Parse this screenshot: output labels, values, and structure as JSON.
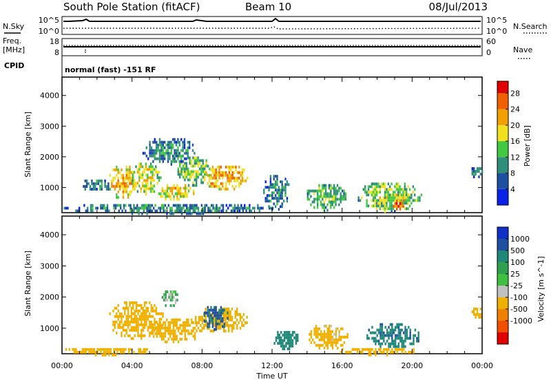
{
  "header": {
    "station": "South Pole Station (fitACF)",
    "beam": "Beam 10",
    "date": "08/Jul/2013"
  },
  "summary_panels": {
    "nsky_label": "N.Sky",
    "nsearch_label": "N.Search",
    "noise_ticks": [
      "10^5",
      "10^0"
    ],
    "noise_ticks_right": [
      "10^5",
      "10^0"
    ],
    "freq_label_line1": "Freq.",
    "freq_label_line2": "[MHz]",
    "freq_ticks": [
      "18",
      "8"
    ],
    "nave_label": "Nave",
    "nave_ticks": [
      "60",
      "0"
    ],
    "cpid_label": "CPID",
    "cpid_text": "normal (fast) -151 RF"
  },
  "colors": {
    "power_scale": [
      "#0a22e8",
      "#1f4fa0",
      "#2f8f7a",
      "#43c843",
      "#f0e020",
      "#f0a000",
      "#f06000",
      "#e00000"
    ],
    "velocity_scale": [
      "#e00000",
      "#f05000",
      "#f08000",
      "#f0b000",
      "#c0c0c0",
      "#40c040",
      "#30a050",
      "#208878",
      "#2050a0",
      "#1030c8"
    ],
    "axis": "#000000"
  },
  "chart_data": [
    {
      "type": "heatmap",
      "panel": "power",
      "ylabel": "Slant Range [km]",
      "x_ticks": [
        "00:00",
        "04:00",
        "08:00",
        "12:00",
        "16:00",
        "20:00",
        "00:00"
      ],
      "xlim_hours": [
        0,
        24
      ],
      "y_ticks": [
        1000,
        2000,
        3000,
        4000
      ],
      "ylim": [
        180,
        4600
      ],
      "colorbar": {
        "label": "Power [dB]",
        "ticks": [
          4,
          8,
          12,
          16,
          20,
          24,
          28
        ],
        "range": [
          0,
          31
        ]
      },
      "regions": [
        {
          "t0": 1.0,
          "t1": 2.9,
          "r0": 900,
          "r1": 1350,
          "level": 6
        },
        {
          "t0": 2.6,
          "t1": 4.2,
          "r0": 650,
          "r1": 1800,
          "level": 18
        },
        {
          "t0": 3.9,
          "t1": 5.6,
          "r0": 800,
          "r1": 1900,
          "level": 14
        },
        {
          "t0": 5.4,
          "t1": 7.5,
          "r0": 600,
          "r1": 1200,
          "level": 16
        },
        {
          "t0": 6.5,
          "t1": 8.5,
          "r0": 1100,
          "r1": 2100,
          "level": 12
        },
        {
          "t0": 8.0,
          "t1": 10.6,
          "r0": 950,
          "r1": 1800,
          "level": 19
        },
        {
          "t0": 4.5,
          "t1": 7.6,
          "r0": 1800,
          "r1": 2700,
          "level": 6
        },
        {
          "t0": 0.0,
          "t1": 12.0,
          "r0": 180,
          "r1": 550,
          "level": 6
        },
        {
          "t0": 11.4,
          "t1": 13.0,
          "r0": 300,
          "r1": 1500,
          "level": 6
        },
        {
          "t0": 13.8,
          "t1": 16.2,
          "r0": 300,
          "r1": 1200,
          "level": 10
        },
        {
          "t0": 16.8,
          "t1": 20.5,
          "r0": 250,
          "r1": 1250,
          "level": 12
        },
        {
          "t0": 18.8,
          "t1": 19.6,
          "r0": 300,
          "r1": 700,
          "level": 22
        },
        {
          "t0": 23.3,
          "t1": 24.0,
          "r0": 1350,
          "r1": 1750,
          "level": 6
        }
      ]
    },
    {
      "type": "heatmap",
      "panel": "velocity",
      "ylabel": "Slant Range [km]",
      "xlabel": "Time UT",
      "x_ticks": [
        "00:00",
        "04:00",
        "08:00",
        "12:00",
        "16:00",
        "20:00",
        "00:00"
      ],
      "xlim_hours": [
        0,
        24
      ],
      "y_ticks": [
        1000,
        2000,
        3000,
        4000
      ],
      "ylim": [
        180,
        4600
      ],
      "colorbar": {
        "label": "Velocity [m s^-1]",
        "ticks": [
          1000,
          500,
          100,
          25,
          -25,
          -100,
          -500,
          -1000
        ]
      },
      "regions": [
        {
          "t0": 2.6,
          "t1": 5.8,
          "r0": 700,
          "r1": 1950,
          "level": -300
        },
        {
          "t0": 5.0,
          "t1": 8.0,
          "r0": 550,
          "r1": 1400,
          "level": -300
        },
        {
          "t0": 5.6,
          "t1": 6.6,
          "r0": 1700,
          "r1": 2300,
          "level": 10
        },
        {
          "t0": 7.5,
          "t1": 10.6,
          "r0": 900,
          "r1": 1750,
          "level": -200
        },
        {
          "t0": 8.0,
          "t1": 9.5,
          "r0": 1000,
          "r1": 1800,
          "level": 600
        },
        {
          "t0": 0.0,
          "t1": 5.0,
          "r0": 180,
          "r1": 450,
          "level": -150
        },
        {
          "t0": 12.0,
          "t1": 13.6,
          "r0": 300,
          "r1": 1000,
          "level": 200
        },
        {
          "t0": 14.0,
          "t1": 16.3,
          "r0": 350,
          "r1": 1200,
          "level": -150
        },
        {
          "t0": 15.7,
          "t1": 20.3,
          "r0": 180,
          "r1": 450,
          "level": -200
        },
        {
          "t0": 17.3,
          "t1": 20.5,
          "r0": 400,
          "r1": 1250,
          "level": 400
        },
        {
          "t0": 23.3,
          "t1": 24.0,
          "r0": 1350,
          "r1": 1750,
          "level": -300
        }
      ]
    }
  ]
}
